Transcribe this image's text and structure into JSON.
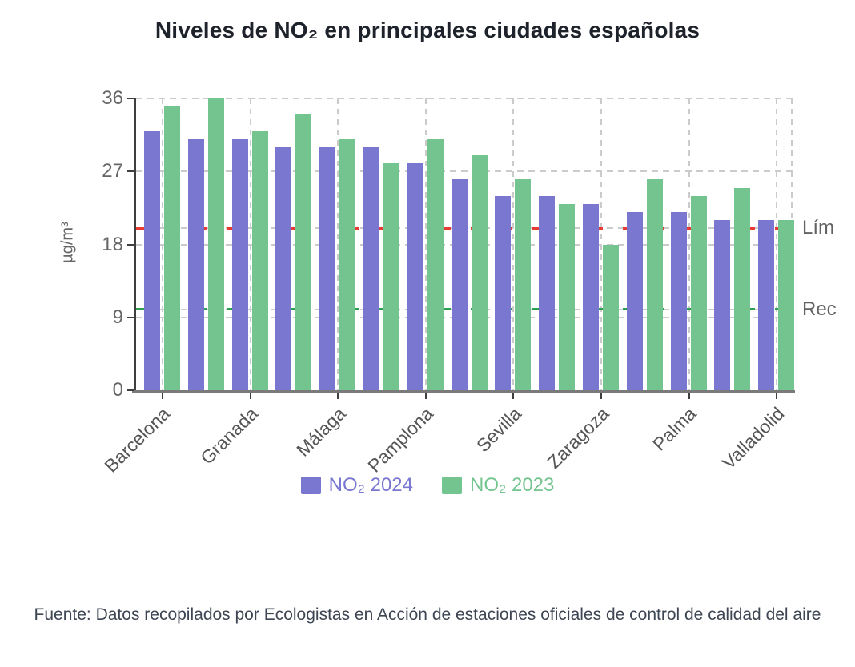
{
  "page": {
    "title": "Niveles de NO₂ en principales ciudades españolas",
    "source_note": "Fuente: Datos recopilados por Ecologistas en Acción de estaciones oficiales de control de calidad del aire"
  },
  "chart_data": {
    "type": "bar",
    "title": "Niveles de NO₂ en principales ciudades españolas",
    "ylabel": "µg/m³",
    "xlabel": "",
    "ylim": [
      0,
      36
    ],
    "yticks": [
      0,
      9,
      18,
      27,
      36
    ],
    "grid": true,
    "legend_position": "bottom",
    "categories": [
      "Barcelona",
      "",
      "Granada",
      "",
      "Málaga",
      "",
      "Pamplona",
      "",
      "Sevilla",
      "",
      "Zaragoza",
      "",
      "Palma",
      "",
      "Valladolid"
    ],
    "labeled_category_note": "only every second bar group carries a visible x-axis label",
    "series": [
      {
        "name": "NO₂ 2024",
        "color": "#7A77D0",
        "values": [
          32,
          31,
          31,
          30,
          30,
          30,
          28,
          26,
          24,
          24,
          23,
          22,
          22,
          21,
          21
        ]
      },
      {
        "name": "NO₂ 2023",
        "color": "#74C48F",
        "values": [
          35,
          36,
          32,
          34,
          31,
          28,
          31,
          29,
          26,
          23,
          18,
          26,
          24,
          25,
          21
        ]
      }
    ],
    "reference_lines": [
      {
        "label": "Lím",
        "value": 20,
        "color": "#E93B32",
        "style": "dashed"
      },
      {
        "label": "Rec",
        "value": 10,
        "color": "#2E9E50",
        "style": "dashed"
      }
    ]
  }
}
